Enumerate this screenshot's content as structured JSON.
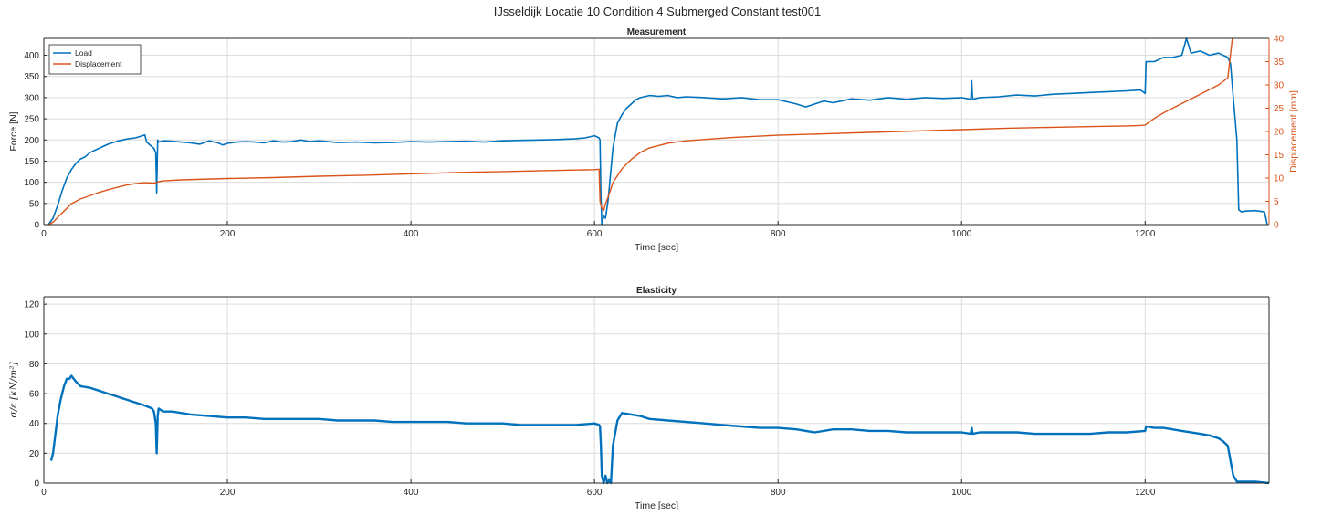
{
  "figure": {
    "title": "IJsseldijk Locatie 10 Condition 4 Submerged Constant test001"
  },
  "chart_data": [
    {
      "type": "line",
      "title": "Measurement",
      "xlabel": "Time [sec]",
      "ylabel": "Force [N]",
      "ylabel_right": "Displacement [mm]",
      "xlim": [
        0,
        1335
      ],
      "ylim": [
        0,
        440
      ],
      "ylim_right": [
        0,
        40
      ],
      "xticks": [
        "0",
        "200",
        "400",
        "600",
        "800",
        "1000",
        "1200"
      ],
      "yticks": [
        "0",
        "50",
        "100",
        "150",
        "200",
        "250",
        "300",
        "350",
        "400"
      ],
      "yticks_right": [
        "0",
        "5",
        "10",
        "15",
        "20",
        "25",
        "30",
        "35",
        "40"
      ],
      "grid": true,
      "legend": "top-left",
      "series": [
        {
          "name": "Load",
          "axis": "left",
          "color": "#0072bd",
          "x": [
            5,
            10,
            15,
            20,
            25,
            30,
            35,
            40,
            45,
            50,
            60,
            70,
            80,
            90,
            100,
            110,
            112,
            120,
            122,
            123,
            124,
            125,
            130,
            140,
            150,
            160,
            170,
            180,
            190,
            195,
            200,
            210,
            220,
            230,
            240,
            250,
            260,
            270,
            280,
            290,
            300,
            320,
            340,
            360,
            380,
            400,
            420,
            440,
            460,
            480,
            500,
            520,
            540,
            560,
            580,
            590,
            600,
            605,
            606,
            607,
            608,
            610,
            612,
            615,
            620,
            625,
            630,
            635,
            640,
            645,
            650,
            660,
            670,
            680,
            690,
            700,
            720,
            740,
            760,
            780,
            800,
            810,
            820,
            830,
            840,
            850,
            860,
            880,
            900,
            920,
            940,
            960,
            980,
            1000,
            1010,
            1011,
            1012,
            1020,
            1040,
            1060,
            1080,
            1100,
            1120,
            1140,
            1160,
            1180,
            1195,
            1200,
            1201,
            1210,
            1220,
            1230,
            1240,
            1245,
            1250,
            1260,
            1270,
            1280,
            1290,
            1293,
            1296,
            1300,
            1302,
            1305,
            1310,
            1320,
            1330,
            1333
          ],
          "y": [
            0,
            15,
            45,
            80,
            110,
            130,
            145,
            155,
            160,
            170,
            180,
            190,
            197,
            202,
            205,
            212,
            195,
            180,
            170,
            75,
            200,
            195,
            198,
            197,
            195,
            193,
            190,
            198,
            193,
            188,
            192,
            195,
            196,
            195,
            193,
            198,
            195,
            196,
            200,
            196,
            198,
            194,
            195,
            193,
            194,
            196,
            195,
            196,
            197,
            195,
            198,
            199,
            200,
            201,
            203,
            205,
            210,
            205,
            200,
            70,
            0,
            20,
            15,
            60,
            180,
            240,
            260,
            275,
            285,
            295,
            300,
            305,
            303,
            305,
            300,
            302,
            300,
            297,
            300,
            295,
            295,
            290,
            285,
            278,
            285,
            292,
            288,
            297,
            294,
            300,
            296,
            300,
            298,
            300,
            296,
            340,
            296,
            300,
            302,
            306,
            304,
            308,
            310,
            312,
            314,
            316,
            318,
            310,
            385,
            385,
            395,
            395,
            400,
            440,
            405,
            410,
            400,
            405,
            395,
            380,
            300,
            200,
            35,
            30,
            32,
            33,
            30,
            0
          ]
        },
        {
          "name": "Displacement",
          "axis": "right",
          "color": "#d95319",
          "x": [
            5,
            10,
            15,
            20,
            25,
            30,
            40,
            50,
            60,
            70,
            80,
            90,
            100,
            110,
            120,
            125,
            130,
            150,
            200,
            250,
            300,
            350,
            400,
            450,
            500,
            550,
            600,
            605,
            606,
            608,
            610,
            612,
            615,
            620,
            630,
            640,
            650,
            660,
            680,
            700,
            750,
            800,
            850,
            900,
            950,
            1000,
            1050,
            1100,
            1150,
            1180,
            1195,
            1200,
            1210,
            1220,
            1240,
            1260,
            1280,
            1290,
            1295
          ],
          "y": [
            0,
            0.5,
            1.5,
            2.5,
            3.5,
            4.5,
            5.5,
            6.2,
            6.9,
            7.5,
            8,
            8.5,
            8.8,
            9,
            8.9,
            9.2,
            9.4,
            9.6,
            9.9,
            10.1,
            10.4,
            10.6,
            10.9,
            11.2,
            11.4,
            11.6,
            11.8,
            11.9,
            5,
            3.5,
            3,
            4.5,
            6,
            9,
            12,
            14,
            15.5,
            16.5,
            17.5,
            18,
            18.7,
            19.2,
            19.5,
            19.8,
            20.1,
            20.4,
            20.7,
            20.9,
            21.1,
            21.2,
            21.3,
            21.4,
            22.8,
            24,
            26,
            28,
            30,
            31.5,
            40
          ]
        }
      ]
    },
    {
      "type": "line",
      "title": "Elasticity",
      "xlabel": "Time [sec]",
      "ylabel": "σ/ε [kN/m²]",
      "xlim": [
        0,
        1335
      ],
      "ylim": [
        0,
        125
      ],
      "xticks": [
        "0",
        "200",
        "400",
        "600",
        "800",
        "1000",
        "1200"
      ],
      "yticks": [
        "0",
        "20",
        "40",
        "60",
        "80",
        "100",
        "120"
      ],
      "grid": true,
      "series": [
        {
          "color": "#0072bd",
          "x": [
            8,
            10,
            12,
            15,
            18,
            20,
            22,
            25,
            28,
            30,
            35,
            40,
            50,
            60,
            70,
            80,
            90,
            100,
            110,
            118,
            120,
            122,
            123,
            124,
            125,
            130,
            140,
            150,
            160,
            180,
            200,
            220,
            240,
            260,
            280,
            300,
            320,
            340,
            360,
            380,
            400,
            420,
            440,
            460,
            480,
            500,
            520,
            540,
            560,
            580,
            600,
            605,
            606,
            607,
            608,
            610,
            612,
            614,
            616,
            618,
            620,
            625,
            630,
            640,
            650,
            660,
            680,
            700,
            720,
            740,
            760,
            780,
            800,
            820,
            840,
            860,
            880,
            900,
            920,
            940,
            960,
            980,
            1000,
            1010,
            1011,
            1012,
            1020,
            1040,
            1060,
            1080,
            1100,
            1120,
            1140,
            1160,
            1180,
            1200,
            1201,
            1210,
            1220,
            1240,
            1260,
            1270,
            1280,
            1285,
            1290,
            1293,
            1296,
            1300,
            1305,
            1310,
            1320,
            1335
          ],
          "y": [
            15,
            20,
            30,
            45,
            55,
            60,
            65,
            70,
            70,
            72,
            68,
            65,
            64,
            62,
            60,
            58,
            56,
            54,
            52,
            50,
            48,
            40,
            20,
            45,
            50,
            48,
            48,
            47,
            46,
            45,
            44,
            44,
            43,
            43,
            43,
            43,
            42,
            42,
            42,
            41,
            41,
            41,
            41,
            40,
            40,
            40,
            39,
            39,
            39,
            39,
            40,
            39,
            38,
            25,
            5,
            0,
            5,
            0,
            2,
            0,
            25,
            42,
            47,
            46,
            45,
            43,
            42,
            41,
            40,
            39,
            38,
            37,
            37,
            36,
            34,
            36,
            36,
            35,
            35,
            34,
            34,
            34,
            34,
            33,
            37,
            33,
            34,
            34,
            34,
            33,
            33,
            33,
            33,
            34,
            34,
            35,
            38,
            37,
            37,
            35,
            33,
            32,
            30,
            28,
            25,
            15,
            5,
            1,
            1,
            1,
            1,
            0
          ]
        }
      ]
    }
  ]
}
